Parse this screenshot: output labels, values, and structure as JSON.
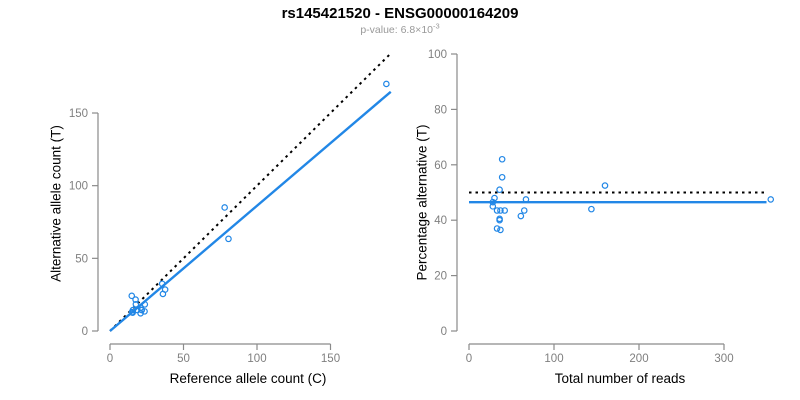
{
  "header": {
    "title": "rs145421520 - ENSG00000164209",
    "pvalue_base": "p-value: 6.8×10",
    "pvalue_exponent": "-3"
  },
  "colors": {
    "accent_blue": "#2287E6",
    "axis_gray": "#8A8A8A",
    "tick_label_gray": "#7F7F7F",
    "line_black": "#000000"
  },
  "chart_data": [
    {
      "type": "scatter",
      "name": "alt-vs-ref-allele-count",
      "xlabel": "Reference allele count (C)",
      "ylabel": "Alternative allele count (T)",
      "xticks": [
        0,
        50,
        100,
        150
      ],
      "yticks": [
        0,
        50,
        100,
        150
      ],
      "xlim": [
        0,
        196
      ],
      "ylim": [
        0,
        191
      ],
      "marker": "open-circle",
      "points": [
        [
          14.8,
          24.2
        ],
        [
          17.4,
          21.6
        ],
        [
          17.6,
          18.4
        ],
        [
          15.6,
          14.4
        ],
        [
          15.0,
          13.0
        ],
        [
          15.4,
          12.6
        ],
        [
          18.6,
          14.4
        ],
        [
          20.9,
          16.1
        ],
        [
          23.7,
          18.3
        ],
        [
          21.4,
          14.6
        ],
        [
          21.6,
          14.4
        ],
        [
          20.8,
          12.2
        ],
        [
          23.5,
          13.5
        ],
        [
          35.5,
          32.5
        ],
        [
          37.5,
          28.5
        ],
        [
          36.0,
          25.5
        ],
        [
          80.6,
          63.4
        ],
        [
          78.0,
          85.0
        ],
        [
          188.0,
          170.0
        ]
      ],
      "lines": [
        {
          "name": "identity-line",
          "dash": "dotted",
          "color_key": "line_black",
          "x1": 0,
          "y1": 0,
          "x2": 191,
          "y2": 191
        },
        {
          "name": "fit-line",
          "dash": "solid",
          "color_key": "accent_blue",
          "x1": 0,
          "y1": 0,
          "x2": 191,
          "y2": 164.6
        }
      ]
    },
    {
      "type": "scatter",
      "name": "percentage-vs-total-reads",
      "xlabel": "Total number of reads",
      "ylabel": "Percentage alternative (T)",
      "xticks": [
        0,
        100,
        200,
        300
      ],
      "yticks": [
        0,
        20,
        40,
        60,
        80,
        100
      ],
      "xlim": [
        0,
        363
      ],
      "ylim": [
        0,
        100
      ],
      "marker": "open-circle",
      "points": [
        [
          39,
          62
        ],
        [
          39,
          55.5
        ],
        [
          36,
          51
        ],
        [
          30,
          48
        ],
        [
          28,
          46.5
        ],
        [
          28,
          45
        ],
        [
          33,
          43.5
        ],
        [
          37,
          43.5
        ],
        [
          42,
          43.5
        ],
        [
          36,
          40.5
        ],
        [
          36,
          40
        ],
        [
          33,
          37
        ],
        [
          37,
          36.5
        ],
        [
          67,
          47.5
        ],
        [
          65,
          43.5
        ],
        [
          61,
          41.5
        ],
        [
          144,
          44
        ],
        [
          160,
          52.5
        ],
        [
          355,
          47.5
        ]
      ],
      "lines": [
        {
          "name": "expected-50pct-line",
          "dash": "dotted",
          "color_key": "line_black",
          "x1": 0,
          "y1": 50,
          "x2": 350,
          "y2": 50
        },
        {
          "name": "fit-line",
          "dash": "solid",
          "color_key": "accent_blue",
          "x1": 0,
          "y1": 46.5,
          "x2": 350,
          "y2": 46.5
        }
      ]
    }
  ]
}
